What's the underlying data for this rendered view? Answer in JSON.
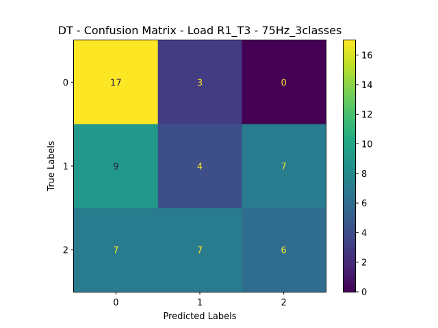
{
  "chart_data": {
    "type": "heatmap",
    "title": "DT - Confusion Matrix - Load R1_T3 - 75Hz_3classes",
    "xlabel": "Predicted Labels",
    "ylabel": "True Labels",
    "x_categories": [
      "0",
      "1",
      "2"
    ],
    "y_categories": [
      "0",
      "1",
      "2"
    ],
    "values": [
      [
        17,
        3,
        0
      ],
      [
        9,
        4,
        7
      ],
      [
        7,
        7,
        6
      ]
    ],
    "colormap": "viridis",
    "colorbar": {
      "range": [
        0,
        17
      ],
      "ticks": [
        0,
        2,
        4,
        6,
        8,
        10,
        12,
        14,
        16
      ],
      "tick_labels": [
        "0",
        "2",
        "4",
        "6",
        "8",
        "10",
        "12",
        "14",
        "16"
      ]
    },
    "text_colors": {
      "on_dark": "#fde725",
      "on_light": "#2d1e3e"
    }
  }
}
